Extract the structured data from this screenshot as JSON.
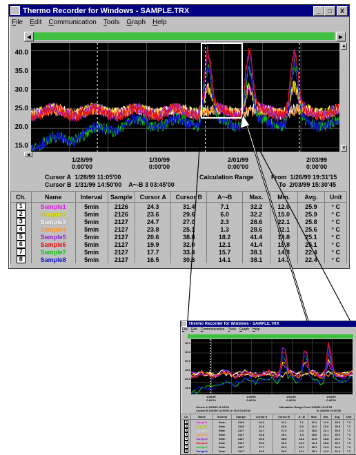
{
  "window": {
    "title": "Thermo Recorder for Windows - SAMPLE.TRX",
    "controls": [
      "_",
      "□",
      "X"
    ]
  },
  "menu": [
    "File",
    "Edit",
    "Communication",
    "Tools",
    "Graph",
    "Help"
  ],
  "chart_data": {
    "type": "line",
    "ylim": [
      14,
      42
    ],
    "y_ticks": [
      "40.0",
      "35.0",
      "30.0",
      "25.0",
      "20.0",
      "15.0"
    ],
    "x_ticks": [
      {
        "date": "1/28/99",
        "time": "0:00'00"
      },
      {
        "date": "1/30/99",
        "time": "0:00'00"
      },
      {
        "date": "2/01/99",
        "time": "0:00'00"
      },
      {
        "date": "2/03/99",
        "time": "0:00'00"
      }
    ],
    "grid": true
  },
  "cursor_info": {
    "cursor_a_label": "Cursor A",
    "cursor_a_value": "1/28/99 11:05'00",
    "cursor_b_label": "Cursor B",
    "cursor_b_value": "1/31/99 14:50'00",
    "diff_label": "A~-B",
    "diff_value": "3 03:45'00",
    "calc_label": "Calculation Range",
    "from_label": "From",
    "from_value": "1/26/99 19:31'15",
    "to_label": "To",
    "to_value": "2/03/99 15:30'45"
  },
  "table": {
    "headers": [
      "Ch.",
      "Name",
      "Interval",
      "Sample",
      "Cursor A",
      "Cursor B",
      "A~-B",
      "Max.",
      "Min.",
      "Avg.",
      "Unit"
    ],
    "rows": [
      {
        "ch": "1",
        "name": "Sample1",
        "color": "#e020e0",
        "interval": "5min",
        "sample": "2126",
        "cursor_a": "24.3",
        "cursor_b": "31.4",
        "diff": "7.1",
        "max": "32.2",
        "min": "12.0",
        "avg": "25.9",
        "unit": "° C"
      },
      {
        "ch": "2",
        "name": "Sample2",
        "color": "#f0f000",
        "interval": "5min",
        "sample": "2126",
        "cursor_a": "23.6",
        "cursor_b": "29.6",
        "diff": "6.0",
        "max": "32.2",
        "min": "15.0",
        "avg": "25.9",
        "unit": "° C"
      },
      {
        "ch": "3",
        "name": "Sample3",
        "color": "#ffffff",
        "interval": "5min",
        "sample": "2127",
        "cursor_a": "24.7",
        "cursor_b": "27.0",
        "diff": "2.3",
        "max": "28.6",
        "min": "22.1",
        "avg": "25.8",
        "unit": "° C"
      },
      {
        "ch": "4",
        "name": "Sample4",
        "color": "#ff9020",
        "interval": "5min",
        "sample": "2127",
        "cursor_a": "23.8",
        "cursor_b": "25.1",
        "diff": "1.3",
        "max": "28.6",
        "min": "22.1",
        "avg": "25.6",
        "unit": "° C"
      },
      {
        "ch": "5",
        "name": "Sample5",
        "color": "#9020d0",
        "interval": "5min",
        "sample": "2127",
        "cursor_a": "20.6",
        "cursor_b": "38.8",
        "diff": "18.2",
        "max": "41.4",
        "min": "18.8",
        "avg": "25.1",
        "unit": "° C"
      },
      {
        "ch": "6",
        "name": "Sample6",
        "color": "#e01010",
        "interval": "5min",
        "sample": "2127",
        "cursor_a": "19.9",
        "cursor_b": "32.0",
        "diff": "12.1",
        "max": "41.4",
        "min": "18.8",
        "avg": "25.1",
        "unit": "° C"
      },
      {
        "ch": "7",
        "name": "Sample7",
        "color": "#10c010",
        "interval": "5min",
        "sample": "2127",
        "cursor_a": "17.7",
        "cursor_b": "33.4",
        "diff": "15.7",
        "max": "38.1",
        "min": "14.3",
        "avg": "22.4",
        "unit": "° C"
      },
      {
        "ch": "8",
        "name": "Sample8",
        "color": "#1010d0",
        "interval": "5min",
        "sample": "2127",
        "cursor_a": "16.5",
        "cursor_b": "30.6",
        "diff": "14.1",
        "max": "38.1",
        "min": "14.3",
        "avg": "22.4",
        "unit": "° C"
      }
    ]
  },
  "inset": {
    "title": "Thermo Recorder for Windows - SAMPLE.TRX",
    "menu": [
      "File",
      "Edit",
      "Communication",
      "Tools",
      "Graph",
      "Help"
    ]
  }
}
